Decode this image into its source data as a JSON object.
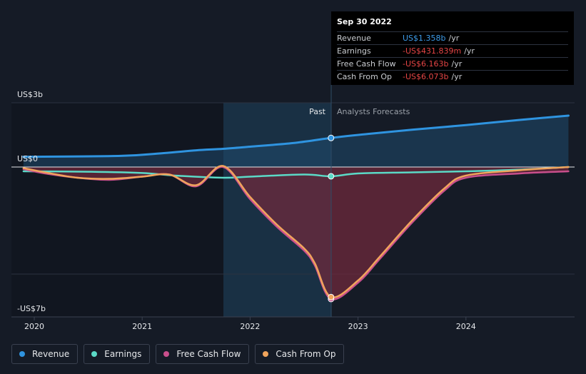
{
  "chart_data": {
    "type": "area",
    "x_ticks": [
      "2020",
      "2021",
      "2022",
      "2023",
      "2024"
    ],
    "y_ticks": {
      "top": "US$3b",
      "zero": "US$0",
      "bottom": "-US$7b"
    },
    "region_labels": {
      "past": "Past",
      "forecast": "Analysts Forecasts"
    },
    "ylim": [
      -7,
      3
    ],
    "past_end": "2022-09-30",
    "series": [
      {
        "name": "Revenue",
        "color": "#2f94e0",
        "points": [
          [
            2019.9,
            0.48
          ],
          [
            2020.8,
            0.52
          ],
          [
            2021.2,
            0.65
          ],
          [
            2021.5,
            0.78
          ],
          [
            2021.75,
            0.85
          ],
          [
            2022.0,
            0.95
          ],
          [
            2022.4,
            1.12
          ],
          [
            2022.75,
            1.358
          ],
          [
            2023.1,
            1.55
          ],
          [
            2023.5,
            1.74
          ],
          [
            2024.0,
            1.96
          ],
          [
            2024.5,
            2.2
          ],
          [
            2024.95,
            2.4
          ]
        ]
      },
      {
        "name": "Earnings",
        "color": "#5bdac7",
        "points": [
          [
            2019.9,
            -0.2
          ],
          [
            2020.5,
            -0.22
          ],
          [
            2021.0,
            -0.28
          ],
          [
            2021.3,
            -0.4
          ],
          [
            2021.75,
            -0.5
          ],
          [
            2022.0,
            -0.45
          ],
          [
            2022.5,
            -0.35
          ],
          [
            2022.75,
            -0.4318
          ],
          [
            2023.0,
            -0.3
          ],
          [
            2023.5,
            -0.25
          ],
          [
            2024.0,
            -0.2
          ],
          [
            2024.5,
            -0.12
          ],
          [
            2024.95,
            0.0
          ]
        ]
      },
      {
        "name": "Free Cash Flow",
        "color": "#c94f8c",
        "points": [
          [
            2019.9,
            -0.1
          ],
          [
            2020.1,
            -0.3
          ],
          [
            2020.4,
            -0.5
          ],
          [
            2020.7,
            -0.6
          ],
          [
            2021.0,
            -0.45
          ],
          [
            2021.25,
            -0.35
          ],
          [
            2021.5,
            -0.9
          ],
          [
            2021.75,
            0.0
          ],
          [
            2022.0,
            -1.5
          ],
          [
            2022.25,
            -2.8
          ],
          [
            2022.5,
            -3.9
          ],
          [
            2022.6,
            -4.6
          ],
          [
            2022.75,
            -6.163
          ],
          [
            2023.0,
            -5.4
          ],
          [
            2023.2,
            -4.3
          ],
          [
            2023.5,
            -2.6
          ],
          [
            2023.8,
            -1.1
          ],
          [
            2024.0,
            -0.5
          ],
          [
            2024.5,
            -0.3
          ],
          [
            2024.95,
            -0.2
          ]
        ]
      },
      {
        "name": "Cash From Op",
        "color": "#f0a45c",
        "points": [
          [
            2019.9,
            -0.05
          ],
          [
            2020.1,
            -0.25
          ],
          [
            2020.4,
            -0.5
          ],
          [
            2020.7,
            -0.55
          ],
          [
            2021.0,
            -0.45
          ],
          [
            2021.25,
            -0.35
          ],
          [
            2021.5,
            -0.85
          ],
          [
            2021.75,
            0.05
          ],
          [
            2022.0,
            -1.4
          ],
          [
            2022.25,
            -2.7
          ],
          [
            2022.5,
            -3.8
          ],
          [
            2022.6,
            -4.5
          ],
          [
            2022.75,
            -6.073
          ],
          [
            2023.0,
            -5.3
          ],
          [
            2023.2,
            -4.2
          ],
          [
            2023.5,
            -2.5
          ],
          [
            2023.8,
            -1.0
          ],
          [
            2024.0,
            -0.4
          ],
          [
            2024.5,
            -0.15
          ],
          [
            2024.95,
            0.0
          ]
        ]
      }
    ]
  },
  "tooltip": {
    "date": "Sep 30 2022",
    "rows": [
      {
        "label": "Revenue",
        "value": "US$1.358b",
        "unit": "/yr",
        "color": "#3d9be9"
      },
      {
        "label": "Earnings",
        "value": "-US$431.839m",
        "unit": "/yr",
        "color": "#e64545"
      },
      {
        "label": "Free Cash Flow",
        "value": "-US$6.163b",
        "unit": "/yr",
        "color": "#e64545"
      },
      {
        "label": "Cash From Op",
        "value": "-US$6.073b",
        "unit": "/yr",
        "color": "#e64545"
      }
    ]
  },
  "legend": [
    {
      "label": "Revenue",
      "color": "#2f94e0"
    },
    {
      "label": "Earnings",
      "color": "#5bdac7"
    },
    {
      "label": "Free Cash Flow",
      "color": "#c94f8c"
    },
    {
      "label": "Cash From Op",
      "color": "#f0a45c"
    }
  ]
}
